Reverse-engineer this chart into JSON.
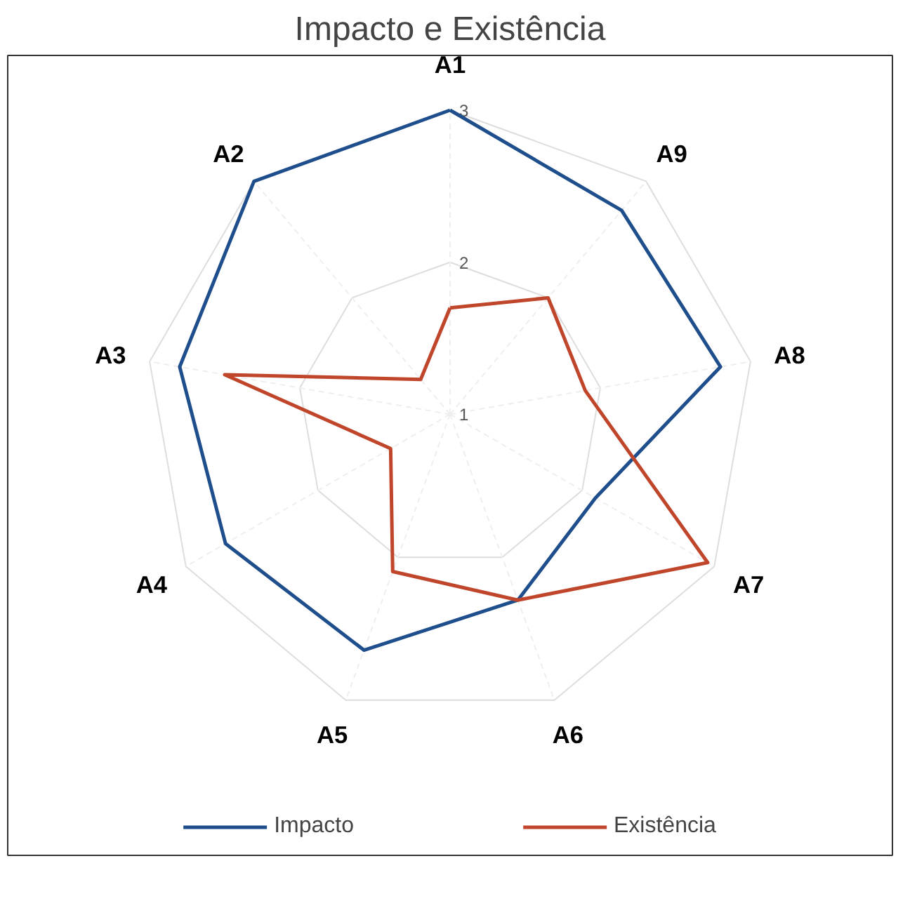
{
  "chart_data": {
    "type": "radar",
    "title": "Impacto e Existência",
    "categories": [
      "A1",
      "A9",
      "A8",
      "A7",
      "A6",
      "A5",
      "A4",
      "A3",
      "A2"
    ],
    "series": [
      {
        "name": "Impacto",
        "color": "#1f4e8c",
        "values": [
          3,
          2.75,
          2.8,
          2.1,
          2.3,
          2.65,
          2.7,
          2.8,
          3
        ]
      },
      {
        "name": "Existência",
        "color": "#c0462b",
        "values": [
          1.7,
          2,
          1.9,
          2.95,
          2.3,
          2.1,
          1.45,
          2.5,
          1.3
        ]
      }
    ],
    "ylim": [
      1,
      3
    ],
    "yticks": [
      1,
      2,
      3
    ],
    "grid": true,
    "legend": "bottom"
  }
}
